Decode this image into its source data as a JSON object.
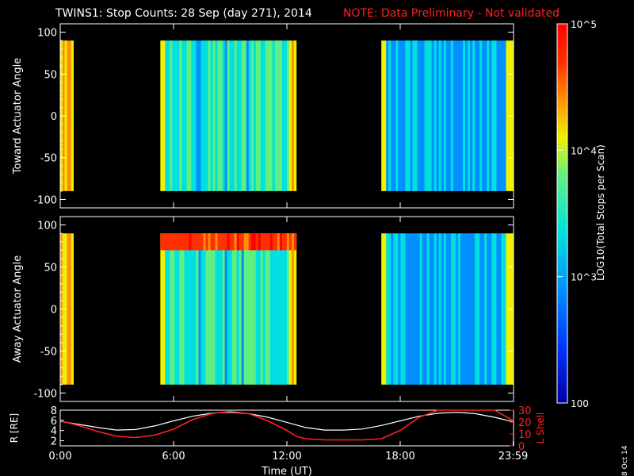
{
  "header": {
    "title": "TWINS1: Stop Counts: 28 Sep (day 271), 2014",
    "note": "NOTE: Data Preliminary - Not validated"
  },
  "side_date": "8 Oct 14",
  "colorbar": {
    "label": "LOG10(Total Stops per Scan)",
    "ticks": [
      "10^5",
      "10^4",
      "10^3",
      "100"
    ],
    "tick_values": [
      100000,
      10000,
      1000,
      100
    ],
    "range": [
      100,
      100000
    ],
    "scale": "log",
    "colormap": [
      "#0000a0",
      "#0030ff",
      "#0090ff",
      "#00e0e0",
      "#60f080",
      "#f0f000",
      "#ff9000",
      "#ff3000",
      "#ff0000"
    ]
  },
  "chart_data": [
    {
      "type": "heatmap",
      "title": "",
      "xlabel": "",
      "ylabel": "Toward Actuator Angle",
      "xlim": [
        0,
        24
      ],
      "ylim": [
        -110,
        110
      ],
      "yticks": [
        "100",
        "50",
        "0",
        "-50",
        "-100"
      ],
      "ytick_values": [
        100,
        50,
        0,
        -50,
        -100
      ],
      "angle_range": [
        -90,
        90
      ],
      "data_blocks": [
        {
          "start": 0.0,
          "end": 0.7,
          "level": "high",
          "log_counts": 4.0
        },
        {
          "start": 5.3,
          "end": 12.5,
          "level": "low",
          "log_counts": 3.2
        },
        {
          "start": 17.0,
          "end": 23.98,
          "level": "low",
          "log_counts": 2.9
        }
      ]
    },
    {
      "type": "heatmap",
      "title": "",
      "xlabel": "",
      "ylabel": "Away Actuator Angle",
      "xlim": [
        0,
        24
      ],
      "ylim": [
        -110,
        110
      ],
      "yticks": [
        "100",
        "50",
        "0",
        "-50",
        "-100"
      ],
      "ytick_values": [
        100,
        50,
        0,
        -50,
        -100
      ],
      "angle_range": [
        -90,
        90
      ],
      "data_blocks": [
        {
          "start": 0.0,
          "end": 0.7,
          "level": "high",
          "log_counts": 4.1
        },
        {
          "start": 5.3,
          "end": 12.5,
          "level": "low",
          "log_counts": 3.2,
          "hot_band": [
            70,
            90
          ]
        },
        {
          "start": 17.0,
          "end": 23.98,
          "level": "low",
          "log_counts": 2.9
        }
      ]
    },
    {
      "type": "line",
      "title": "",
      "xlabel": "Time (UT)",
      "ylabel": "R [RE]",
      "ylabel_right": "L Shell",
      "xticks": [
        "0:00",
        "6:00",
        "12:00",
        "18:00",
        "23:59"
      ],
      "xtick_values": [
        0,
        6,
        12,
        18,
        23.98
      ],
      "xlim": [
        0,
        24
      ],
      "ylim": [
        1,
        8
      ],
      "yticks": [
        "2",
        "4",
        "6",
        "8"
      ],
      "ytick_values": [
        2,
        4,
        6,
        8
      ],
      "ylim_right": [
        0,
        30
      ],
      "yticks_right": [
        "0",
        "10",
        "20",
        "30"
      ],
      "ytick_values_right": [
        0,
        10,
        20,
        30
      ],
      "series": [
        {
          "color": "#ffffff",
          "axis": "left",
          "x": [
            0,
            1,
            2,
            3,
            4,
            5,
            6,
            7,
            8,
            9,
            10,
            11,
            12,
            13,
            14,
            15,
            16,
            17,
            18,
            19,
            20,
            21,
            22,
            23,
            24
          ],
          "values": [
            5.8,
            5.2,
            4.6,
            4.1,
            4.2,
            4.9,
            5.9,
            6.8,
            7.4,
            7.6,
            7.3,
            6.6,
            5.6,
            4.6,
            4.1,
            4.1,
            4.3,
            5.0,
            5.9,
            6.8,
            7.4,
            7.6,
            7.3,
            6.6,
            5.7
          ]
        },
        {
          "color": "#ff2020",
          "axis": "right",
          "x": [
            0,
            1,
            2,
            3,
            4,
            5,
            6,
            7,
            8,
            9,
            10,
            11,
            12,
            12.5,
            13,
            14,
            15,
            16,
            17,
            18,
            19,
            20,
            21,
            22,
            23,
            24
          ],
          "values": [
            21,
            17,
            12,
            8,
            7,
            9,
            14,
            22,
            27,
            29,
            27,
            21,
            13,
            8,
            6,
            5,
            5,
            5,
            6,
            13,
            24,
            35,
            40,
            40,
            35,
            21
          ]
        }
      ]
    }
  ]
}
